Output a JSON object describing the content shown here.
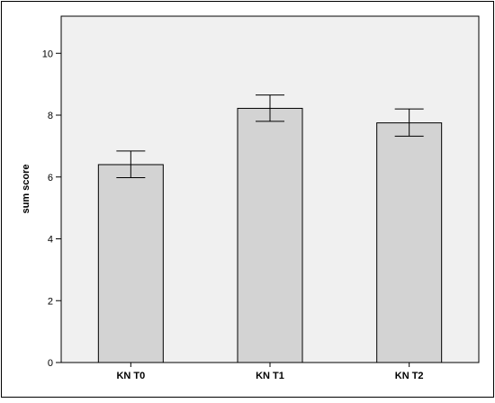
{
  "chart_data": {
    "type": "bar",
    "title": "",
    "xlabel": "",
    "ylabel": "sum score",
    "categories": [
      "KN T0",
      "KN T1",
      "KN T2"
    ],
    "values": [
      6.4,
      8.22,
      7.75
    ],
    "error_bars": [
      {
        "low": 5.98,
        "high": 6.84
      },
      {
        "low": 7.8,
        "high": 8.65
      },
      {
        "low": 7.32,
        "high": 8.2
      }
    ],
    "ylim": [
      0,
      11.2
    ],
    "yticks": [
      "0",
      "2",
      "4",
      "6",
      "8",
      "10"
    ],
    "grid": false,
    "legend": "none",
    "colors": {
      "bar_fill": "#d3d3d3",
      "bar_stroke": "#000000",
      "plot_background": "#f0f0f0",
      "frame": "#000000"
    }
  }
}
